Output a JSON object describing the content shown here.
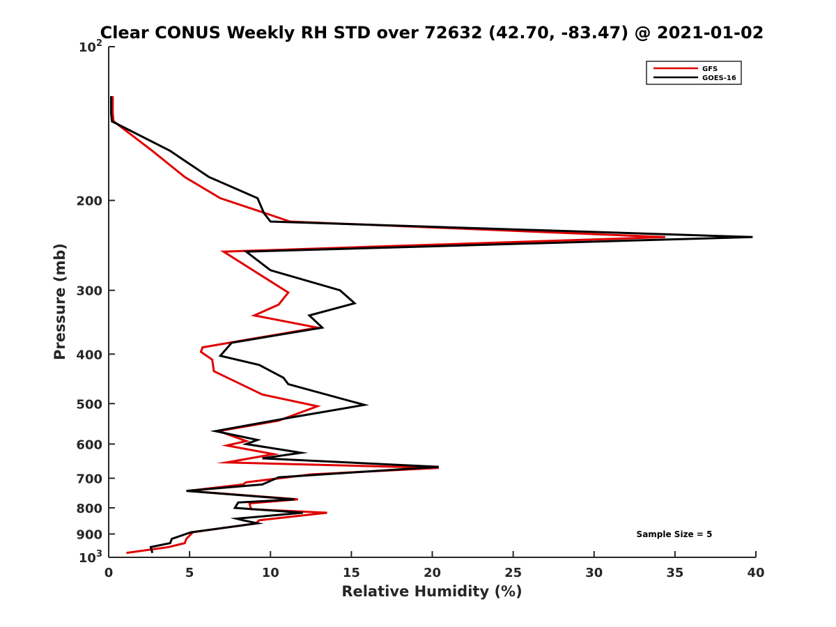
{
  "chart_data": {
    "type": "line",
    "title": "Clear CONUS Weekly RH STD over 72632 (42.70, -83.47) @ 2021-01-02",
    "xlabel": "Relative Humidity (%)",
    "ylabel": "Pressure (mb)",
    "xlim": [
      0,
      40
    ],
    "ylim": [
      100,
      1000
    ],
    "y_scale": "log",
    "y_reversed": true,
    "grid": false,
    "legend_position": "top-right",
    "x_ticks": [
      0,
      5,
      10,
      15,
      20,
      25,
      30,
      35,
      40
    ],
    "x_tick_labels": [
      "0",
      "5",
      "10",
      "15",
      "20",
      "25",
      "30",
      "35",
      "40"
    ],
    "y_ticks": [
      100,
      200,
      300,
      400,
      500,
      600,
      700,
      800,
      900,
      1000
    ],
    "y_tick_labels": [
      {
        "base": "10",
        "exp": "2"
      },
      {
        "base": "200",
        "exp": ""
      },
      {
        "base": "300",
        "exp": ""
      },
      {
        "base": "400",
        "exp": ""
      },
      {
        "base": "500",
        "exp": ""
      },
      {
        "base": "600",
        "exp": ""
      },
      {
        "base": "700",
        "exp": ""
      },
      {
        "base": "800",
        "exp": ""
      },
      {
        "base": "900",
        "exp": ""
      },
      {
        "base": "10",
        "exp": "3"
      }
    ],
    "annotation": "Sample Size = 5",
    "series": [
      {
        "name": "GFS",
        "color": "#e00000",
        "points": [
          [
            0.25,
            125
          ],
          [
            0.25,
            135
          ],
          [
            0.3,
            140
          ],
          [
            2.7,
            160
          ],
          [
            4.7,
            180
          ],
          [
            6.9,
            198
          ],
          [
            9.7,
            212
          ],
          [
            11.2,
            220
          ],
          [
            34.4,
            236
          ],
          [
            7.1,
            252
          ],
          [
            11.1,
            303
          ],
          [
            10.5,
            320
          ],
          [
            9.0,
            336
          ],
          [
            12.9,
            355
          ],
          [
            5.8,
            388
          ],
          [
            5.7,
            396
          ],
          [
            6.4,
            410
          ],
          [
            6.5,
            432
          ],
          [
            9.5,
            480
          ],
          [
            12.9,
            506
          ],
          [
            10.5,
            540
          ],
          [
            6.8,
            566
          ],
          [
            8.5,
            592
          ],
          [
            7.3,
            604
          ],
          [
            10.2,
            628
          ],
          [
            7.3,
            652
          ],
          [
            20.4,
            668
          ],
          [
            12.5,
            688
          ],
          [
            8.5,
            713
          ],
          [
            8.3,
            720
          ],
          [
            4.9,
            741
          ],
          [
            11.7,
            770
          ],
          [
            8.7,
            784
          ],
          [
            8.8,
            805
          ],
          [
            13.5,
            818
          ],
          [
            9.3,
            846
          ],
          [
            9.1,
            858
          ],
          [
            5.2,
            893
          ],
          [
            4.8,
            920
          ],
          [
            4.7,
            938
          ],
          [
            3.7,
            955
          ],
          [
            1.1,
            980
          ]
        ]
      },
      {
        "name": "GOES-16",
        "color": "#000000",
        "points": [
          [
            0.15,
            125
          ],
          [
            0.15,
            135
          ],
          [
            0.2,
            140
          ],
          [
            3.8,
            160
          ],
          [
            6.2,
            180
          ],
          [
            9.2,
            198
          ],
          [
            9.6,
            212
          ],
          [
            10.0,
            220
          ],
          [
            39.8,
            236
          ],
          [
            8.5,
            252
          ],
          [
            10.0,
            274
          ],
          [
            14.3,
            300
          ],
          [
            15.2,
            318
          ],
          [
            12.4,
            336
          ],
          [
            13.2,
            355
          ],
          [
            7.6,
            380
          ],
          [
            6.9,
            403
          ],
          [
            9.3,
            420
          ],
          [
            10.8,
            445
          ],
          [
            11.1,
            458
          ],
          [
            15.8,
            503
          ],
          [
            11.3,
            532
          ],
          [
            6.6,
            566
          ],
          [
            9.2,
            589
          ],
          [
            8.5,
            600
          ],
          [
            11.9,
            624
          ],
          [
            9.5,
            640
          ],
          [
            20.4,
            665
          ],
          [
            10.5,
            697
          ],
          [
            9.5,
            720
          ],
          [
            4.8,
            741
          ],
          [
            11.5,
            770
          ],
          [
            8.0,
            781
          ],
          [
            7.8,
            800
          ],
          [
            12.0,
            818
          ],
          [
            7.9,
            840
          ],
          [
            8.3,
            846
          ],
          [
            9.2,
            858
          ],
          [
            5.1,
            893
          ],
          [
            3.9,
            920
          ],
          [
            3.8,
            938
          ],
          [
            2.6,
            955
          ],
          [
            2.7,
            980
          ]
        ]
      }
    ]
  }
}
